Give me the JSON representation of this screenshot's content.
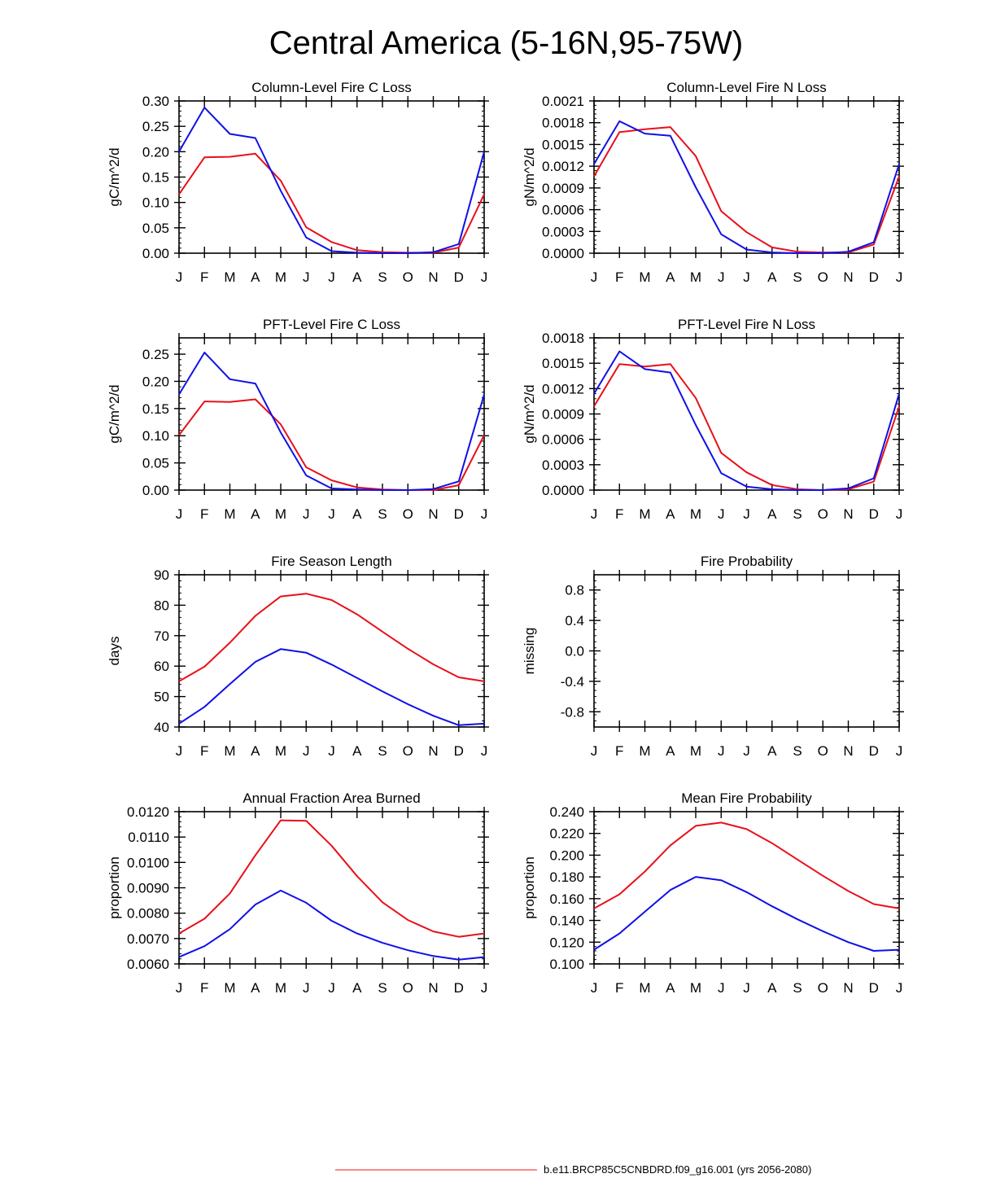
{
  "figure": {
    "title": "Central America (5-16N,95-75W)",
    "legend_label": "b.e11.BRCP85C5CNBDRD.f09_g16.001 (yrs 2056-2080)",
    "colors": {
      "red": "#e8101a",
      "blue": "#1010e8",
      "legend_line": "#ff4040"
    }
  },
  "chart_data": [
    {
      "type": "line",
      "title": "Column-Level Fire C Loss",
      "ylabel": "gC/m^2/d",
      "categories": [
        "J",
        "F",
        "M",
        "A",
        "M",
        "J",
        "J",
        "A",
        "S",
        "O",
        "N",
        "D",
        "J"
      ],
      "ylim": [
        0,
        0.3
      ],
      "yticks": [
        "0.00",
        "0.05",
        "0.10",
        "0.15",
        "0.20",
        "0.25",
        "0.30"
      ],
      "series": [
        {
          "name": "red",
          "values": [
            0.116,
            0.189,
            0.19,
            0.196,
            0.143,
            0.051,
            0.022,
            0.006,
            0.002,
            0.001,
            0.001,
            0.011,
            0.116
          ]
        },
        {
          "name": "blue",
          "values": [
            0.2,
            0.287,
            0.235,
            0.227,
            0.123,
            0.031,
            0.004,
            0.001,
            0.0,
            0.0,
            0.002,
            0.018,
            0.2
          ]
        }
      ]
    },
    {
      "type": "line",
      "title": "Column-Level Fire N Loss",
      "ylabel": "gN/m^2/d",
      "categories": [
        "J",
        "F",
        "M",
        "A",
        "M",
        "J",
        "J",
        "A",
        "S",
        "O",
        "N",
        "D",
        "J"
      ],
      "ylim": [
        0,
        0.0021
      ],
      "yticks": [
        "0.0000",
        "0.0003",
        "0.0006",
        "0.0009",
        "0.0012",
        "0.0015",
        "0.0018",
        "0.0021"
      ],
      "series": [
        {
          "name": "red",
          "values": [
            0.00106,
            0.00167,
            0.00171,
            0.00174,
            0.00134,
            0.00058,
            0.00029,
            8e-05,
            2e-05,
            1e-05,
            1e-05,
            0.00012,
            0.00106
          ]
        },
        {
          "name": "blue",
          "values": [
            0.00123,
            0.00182,
            0.00165,
            0.00162,
            0.00091,
            0.00026,
            5e-05,
            1e-05,
            0.0,
            0.0,
            2e-05,
            0.00015,
            0.00123
          ]
        }
      ]
    },
    {
      "type": "line",
      "title": "PFT-Level Fire C Loss",
      "ylabel": "gC/m^2/d",
      "categories": [
        "J",
        "F",
        "M",
        "A",
        "M",
        "J",
        "J",
        "A",
        "S",
        "O",
        "N",
        "D",
        "J"
      ],
      "ylim": [
        0,
        0.28
      ],
      "yticks": [
        "0.00",
        "0.05",
        "0.10",
        "0.15",
        "0.20",
        "0.25"
      ],
      "series": [
        {
          "name": "red",
          "values": [
            0.101,
            0.163,
            0.162,
            0.167,
            0.121,
            0.042,
            0.018,
            0.005,
            0.001,
            0.0,
            0.0,
            0.009,
            0.101
          ]
        },
        {
          "name": "blue",
          "values": [
            0.176,
            0.253,
            0.204,
            0.196,
            0.106,
            0.027,
            0.003,
            0.001,
            0.0,
            0.0,
            0.002,
            0.016,
            0.176
          ]
        }
      ]
    },
    {
      "type": "line",
      "title": "PFT-Level Fire N Loss",
      "ylabel": "gN/m^2/d",
      "categories": [
        "J",
        "F",
        "M",
        "A",
        "M",
        "J",
        "J",
        "A",
        "S",
        "O",
        "N",
        "D",
        "J"
      ],
      "ylim": [
        0,
        0.0018
      ],
      "yticks": [
        "0.0000",
        "0.0003",
        "0.0006",
        "0.0009",
        "0.0012",
        "0.0015",
        "0.0018"
      ],
      "series": [
        {
          "name": "red",
          "values": [
            0.00099,
            0.00149,
            0.00146,
            0.00149,
            0.00109,
            0.00044,
            0.00021,
            6e-05,
            1e-05,
            0.0,
            1e-05,
            0.0001,
            0.00099
          ]
        },
        {
          "name": "blue",
          "values": [
            0.00114,
            0.00164,
            0.00143,
            0.00139,
            0.00077,
            0.0002,
            4e-05,
            1e-05,
            0.0,
            0.0,
            2e-05,
            0.00014,
            0.00114
          ]
        }
      ]
    },
    {
      "type": "line",
      "title": "Fire Season Length",
      "ylabel": "days",
      "categories": [
        "J",
        "F",
        "M",
        "A",
        "M",
        "J",
        "J",
        "A",
        "S",
        "O",
        "N",
        "D",
        "J"
      ],
      "ylim": [
        40,
        90
      ],
      "yticks": [
        "40",
        "50",
        "60",
        "70",
        "80",
        "90"
      ],
      "series": [
        {
          "name": "red",
          "values": [
            55.0,
            59.8,
            67.7,
            76.5,
            82.9,
            83.8,
            81.7,
            77.0,
            71.3,
            65.7,
            60.6,
            56.3,
            55.0
          ]
        },
        {
          "name": "blue",
          "values": [
            41.1,
            46.6,
            54.1,
            61.4,
            65.6,
            64.4,
            60.5,
            56.1,
            51.7,
            47.5,
            43.7,
            40.6,
            41.1
          ]
        }
      ]
    },
    {
      "type": "line",
      "title": "Fire Probability",
      "ylabel": "missing",
      "categories": [
        "J",
        "F",
        "M",
        "A",
        "M",
        "J",
        "J",
        "A",
        "S",
        "O",
        "N",
        "D",
        "J"
      ],
      "ylim": [
        -1.0,
        1.0
      ],
      "yticks": [
        "-0.8",
        "-0.4",
        "0.0",
        "0.4",
        "0.8"
      ],
      "series": []
    },
    {
      "type": "line",
      "title": "Annual Fraction Area Burned",
      "ylabel": "proportion",
      "categories": [
        "J",
        "F",
        "M",
        "A",
        "M",
        "J",
        "J",
        "A",
        "S",
        "O",
        "N",
        "D",
        "J"
      ],
      "ylim": [
        0.006,
        0.012
      ],
      "yticks": [
        "0.0060",
        "0.0070",
        "0.0080",
        "0.0090",
        "0.0100",
        "0.0110",
        "0.0120"
      ],
      "series": [
        {
          "name": "red",
          "values": [
            0.0072,
            0.00778,
            0.00878,
            0.01028,
            0.01166,
            0.01164,
            0.01066,
            0.00946,
            0.00843,
            0.00773,
            0.00728,
            0.00707,
            0.0072
          ]
        },
        {
          "name": "blue",
          "values": [
            0.00627,
            0.0067,
            0.00737,
            0.00834,
            0.00889,
            0.00841,
            0.0077,
            0.0072,
            0.00683,
            0.00654,
            0.00631,
            0.00617,
            0.00627
          ]
        }
      ]
    },
    {
      "type": "line",
      "title": "Mean Fire Probability",
      "ylabel": "proportion",
      "categories": [
        "J",
        "F",
        "M",
        "A",
        "M",
        "J",
        "J",
        "A",
        "S",
        "O",
        "N",
        "D",
        "J"
      ],
      "ylim": [
        0.1,
        0.24
      ],
      "yticks": [
        "0.100",
        "0.120",
        "0.140",
        "0.160",
        "0.180",
        "0.200",
        "0.220",
        "0.240"
      ],
      "series": [
        {
          "name": "red",
          "values": [
            0.151,
            0.164,
            0.185,
            0.209,
            0.227,
            0.23,
            0.224,
            0.211,
            0.196,
            0.181,
            0.167,
            0.155,
            0.151
          ]
        },
        {
          "name": "blue",
          "values": [
            0.113,
            0.128,
            0.148,
            0.168,
            0.18,
            0.177,
            0.166,
            0.153,
            0.141,
            0.13,
            0.12,
            0.112,
            0.113
          ]
        }
      ]
    }
  ]
}
